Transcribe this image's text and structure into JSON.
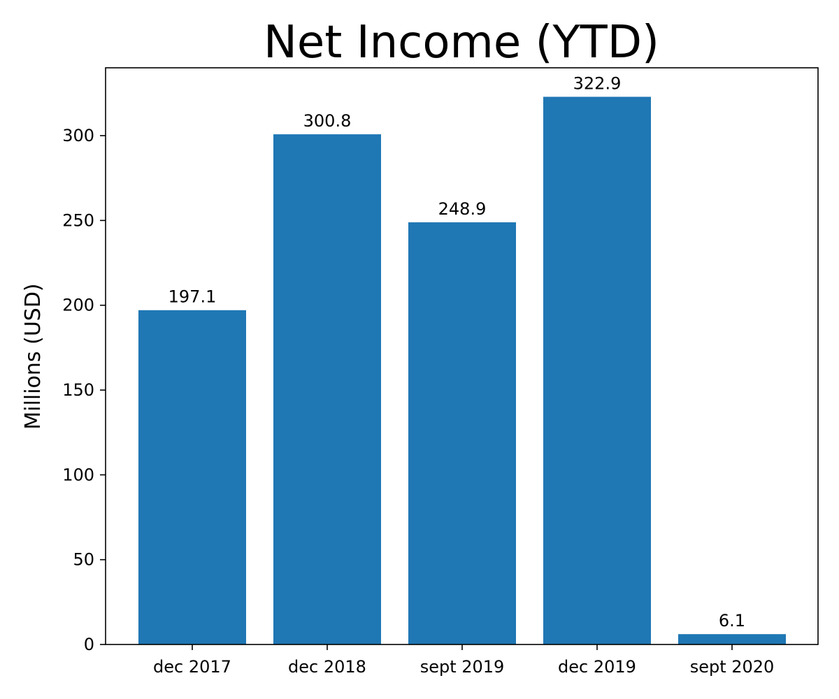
{
  "chart_data": {
    "type": "bar",
    "title": "Net Income (YTD)",
    "xlabel": "",
    "ylabel": "Millions (USD)",
    "categories": [
      "dec 2017",
      "dec 2018",
      "sept 2019",
      "dec 2019",
      "sept 2020"
    ],
    "values": [
      197.1,
      300.8,
      248.9,
      322.9,
      6.1
    ],
    "data_labels": [
      "197.1",
      "300.8",
      "248.9",
      "322.9",
      "6.1"
    ],
    "ylim": [
      0,
      340
    ],
    "yticks": [
      0,
      50,
      100,
      150,
      200,
      250,
      300
    ],
    "grid": false,
    "legend": "none",
    "bar_color": "#1f77b4"
  }
}
